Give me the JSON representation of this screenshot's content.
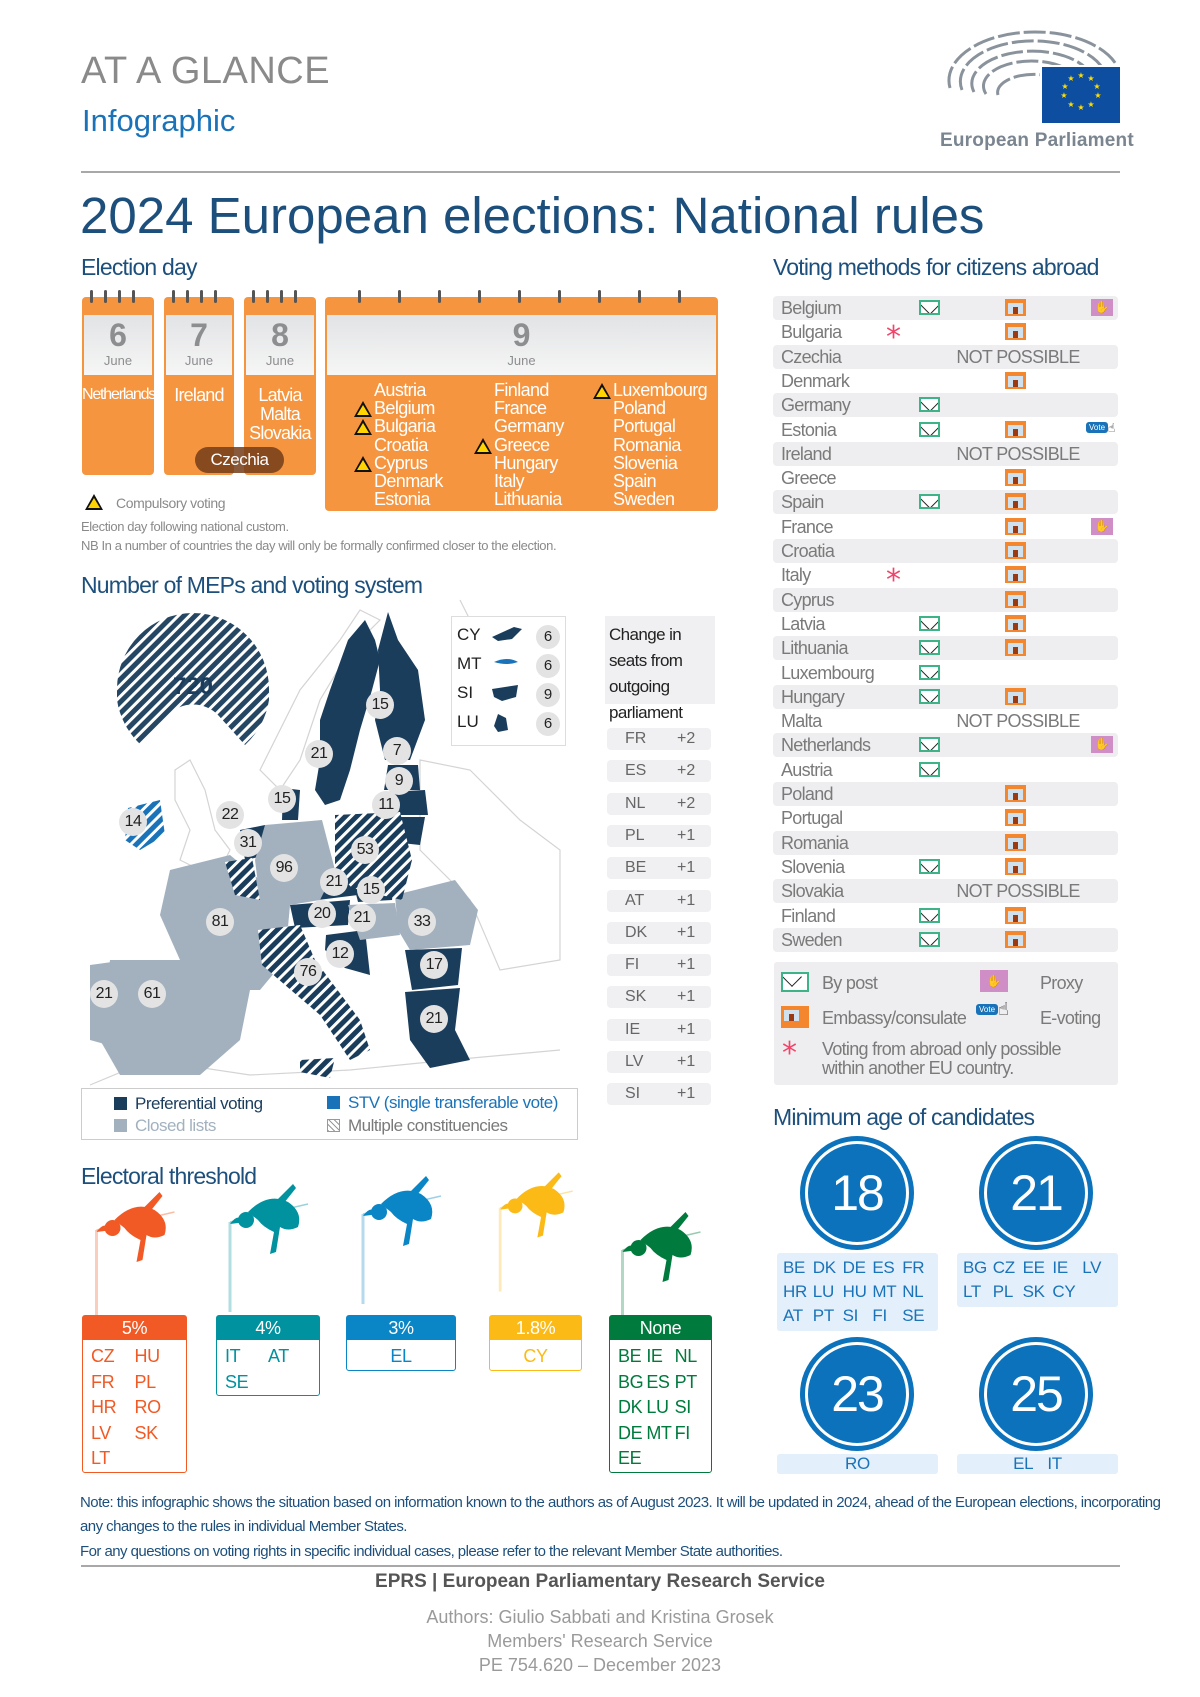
{
  "header": {
    "at_a_glance": "AT A GLANCE",
    "infographic": "Infographic",
    "logo_text": "European Parliament",
    "title": "2024 European elections: National rules"
  },
  "election_day": {
    "heading": "Election day",
    "calendars": [
      {
        "day": "6",
        "month": "June",
        "countries": [
          "Netherlands"
        ]
      },
      {
        "day": "7",
        "month": "June",
        "countries": [
          "Ireland"
        ]
      },
      {
        "day": "8",
        "month": "June",
        "countries": [
          "Latvia",
          "Malta",
          "Slovakia"
        ]
      },
      {
        "day": "9",
        "month": "June",
        "columns": [
          [
            {
              "name": "Austria",
              "compulsory": false
            },
            {
              "name": "Belgium",
              "compulsory": true
            },
            {
              "name": "Bulgaria",
              "compulsory": true
            },
            {
              "name": "Croatia",
              "compulsory": false
            },
            {
              "name": "Cyprus",
              "compulsory": true
            },
            {
              "name": "Denmark",
              "compulsory": false
            },
            {
              "name": "Estonia",
              "compulsory": false
            }
          ],
          [
            {
              "name": "Finland",
              "compulsory": false
            },
            {
              "name": "France",
              "compulsory": false
            },
            {
              "name": "Germany",
              "compulsory": false
            },
            {
              "name": "Greece",
              "compulsory": true
            },
            {
              "name": "Hungary",
              "compulsory": false
            },
            {
              "name": "Italy",
              "compulsory": false
            },
            {
              "name": "Lithuania",
              "compulsory": false
            }
          ],
          [
            {
              "name": "Luxembourg",
              "compulsory": true
            },
            {
              "name": "Poland",
              "compulsory": false
            },
            {
              "name": "Portugal",
              "compulsory": false
            },
            {
              "name": "Romania",
              "compulsory": false
            },
            {
              "name": "Slovenia",
              "compulsory": false
            },
            {
              "name": "Spain",
              "compulsory": false
            },
            {
              "name": "Sweden",
              "compulsory": false
            }
          ]
        ]
      }
    ],
    "shared_7_8": "Czechia",
    "legend_compulsory": "Compulsory voting",
    "notes": [
      "Election day following national custom.",
      "NB In a number of countries the day will only be formally confirmed closer to the election."
    ]
  },
  "meps": {
    "heading": "Number of MEPs and voting system",
    "total": "720",
    "seats": [
      {
        "code": "FI",
        "seats": "15"
      },
      {
        "code": "SE",
        "seats": "21"
      },
      {
        "code": "EE",
        "seats": "7"
      },
      {
        "code": "LV",
        "seats": "9"
      },
      {
        "code": "LT",
        "seats": "11"
      },
      {
        "code": "DK",
        "seats": "15"
      },
      {
        "code": "IE",
        "seats": "14"
      },
      {
        "code": "BE",
        "seats": "22"
      },
      {
        "code": "NL",
        "seats": "31"
      },
      {
        "code": "DE",
        "seats": "96"
      },
      {
        "code": "PL",
        "seats": "53"
      },
      {
        "code": "CZ",
        "seats": "21"
      },
      {
        "code": "SK",
        "seats": "15"
      },
      {
        "code": "AT",
        "seats": "20"
      },
      {
        "code": "HU",
        "seats": "21"
      },
      {
        "code": "RO",
        "seats": "33"
      },
      {
        "code": "FR",
        "seats": "81"
      },
      {
        "code": "HR",
        "seats": "12"
      },
      {
        "code": "IT",
        "seats": "76"
      },
      {
        "code": "BG",
        "seats": "17"
      },
      {
        "code": "EL",
        "seats": "21"
      },
      {
        "code": "PT",
        "seats": "21"
      },
      {
        "code": "ES",
        "seats": "61"
      }
    ],
    "inset": [
      {
        "code": "CY",
        "seats": "6"
      },
      {
        "code": "MT",
        "seats": "6"
      },
      {
        "code": "SI",
        "seats": "9"
      },
      {
        "code": "LU",
        "seats": "6"
      }
    ],
    "legend": {
      "preferential": "Preferential voting",
      "closed": "Closed lists",
      "stv": "STV (single transferable vote)",
      "multiple": "Multiple constituencies"
    },
    "colors": {
      "preferential": "#1b3d5c",
      "closed": "#a3b1bf",
      "stv": "#1a73b9"
    },
    "change_heading": "Change in seats from outgoing parliament",
    "changes": [
      {
        "code": "FR",
        "delta": "+2"
      },
      {
        "code": "ES",
        "delta": "+2"
      },
      {
        "code": "NL",
        "delta": "+2"
      },
      {
        "code": "PL",
        "delta": "+1"
      },
      {
        "code": "BE",
        "delta": "+1"
      },
      {
        "code": "AT",
        "delta": "+1"
      },
      {
        "code": "DK",
        "delta": "+1"
      },
      {
        "code": "FI",
        "delta": "+1"
      },
      {
        "code": "SK",
        "delta": "+1"
      },
      {
        "code": "IE",
        "delta": "+1"
      },
      {
        "code": "LV",
        "delta": "+1"
      },
      {
        "code": "SI",
        "delta": "+1"
      }
    ]
  },
  "threshold": {
    "heading": "Electoral threshold",
    "groups": [
      {
        "label": "5%",
        "color": "#f15a24",
        "cols": 2,
        "codes": [
          "CZ",
          "HU",
          "FR",
          "PL",
          "HR",
          "RO",
          "LV",
          "SK",
          "LT"
        ]
      },
      {
        "label": "4%",
        "color": "#00929f",
        "cols": 2,
        "codes": [
          "IT",
          "AT",
          "SE"
        ]
      },
      {
        "label": "3%",
        "color": "#0a86c6",
        "cols": 1,
        "codes": [
          "EL"
        ]
      },
      {
        "label": "1.8%",
        "color": "#fbba16",
        "cols": 1,
        "codes": [
          "CY"
        ]
      },
      {
        "label": "None",
        "color": "#007a3d",
        "cols": 3,
        "codes": [
          "BE",
          "IE",
          "NL",
          "BG",
          "ES",
          "PT",
          "DK",
          "LU",
          "SI",
          "DE",
          "MT",
          "FI",
          "EE"
        ]
      }
    ]
  },
  "voting_abroad": {
    "heading": "Voting methods for citizens abroad",
    "not_possible": "NOT POSSIBLE",
    "rows": [
      {
        "country": "Belgium",
        "methods": [
          "post",
          "embassy",
          "proxy"
        ]
      },
      {
        "country": "Bulgaria",
        "methods": [
          "eu_only",
          "embassy"
        ]
      },
      {
        "country": "Czechia",
        "methods": [
          "not_possible"
        ]
      },
      {
        "country": "Denmark",
        "methods": [
          "embassy"
        ]
      },
      {
        "country": "Germany",
        "methods": [
          "post"
        ]
      },
      {
        "country": "Estonia",
        "methods": [
          "post",
          "embassy",
          "evote"
        ]
      },
      {
        "country": "Ireland",
        "methods": [
          "not_possible"
        ]
      },
      {
        "country": "Greece",
        "methods": [
          "embassy"
        ]
      },
      {
        "country": "Spain",
        "methods": [
          "post",
          "embassy"
        ]
      },
      {
        "country": "France",
        "methods": [
          "embassy",
          "proxy"
        ]
      },
      {
        "country": "Croatia",
        "methods": [
          "embassy"
        ]
      },
      {
        "country": "Italy",
        "methods": [
          "eu_only",
          "embassy"
        ]
      },
      {
        "country": "Cyprus",
        "methods": [
          "embassy"
        ]
      },
      {
        "country": "Latvia",
        "methods": [
          "post",
          "embassy"
        ]
      },
      {
        "country": "Lithuania",
        "methods": [
          "post",
          "embassy"
        ]
      },
      {
        "country": "Luxembourg",
        "methods": [
          "post"
        ]
      },
      {
        "country": "Hungary",
        "methods": [
          "post",
          "embassy"
        ]
      },
      {
        "country": "Malta",
        "methods": [
          "not_possible"
        ]
      },
      {
        "country": "Netherlands",
        "methods": [
          "post",
          "proxy"
        ]
      },
      {
        "country": "Austria",
        "methods": [
          "post"
        ]
      },
      {
        "country": "Poland",
        "methods": [
          "embassy"
        ]
      },
      {
        "country": "Portugal",
        "methods": [
          "embassy"
        ]
      },
      {
        "country": "Romania",
        "methods": [
          "embassy"
        ]
      },
      {
        "country": "Slovenia",
        "methods": [
          "post",
          "embassy"
        ]
      },
      {
        "country": "Slovakia",
        "methods": [
          "not_possible"
        ]
      },
      {
        "country": "Finland",
        "methods": [
          "post",
          "embassy"
        ]
      },
      {
        "country": "Sweden",
        "methods": [
          "post",
          "embassy"
        ]
      }
    ],
    "legend": {
      "post": "By post",
      "proxy": "Proxy",
      "embassy": "Embassy/consulate",
      "evote": "E-voting",
      "evote_badge": "Vote",
      "eu_only": "Voting from abroad only possible within another EU country."
    }
  },
  "min_age": {
    "heading": "Minimum age of candidates",
    "groups": [
      {
        "age": "18",
        "codes": [
          "BE",
          "DK",
          "DE",
          "ES",
          "FR",
          "HR",
          "LU",
          "HU",
          "MT",
          "NL",
          "AT",
          "PT",
          "SI",
          "FI",
          "SE"
        ]
      },
      {
        "age": "21",
        "codes": [
          "BG",
          "CZ",
          "EE",
          "IE",
          "LV",
          "LT",
          "PL",
          "SK",
          "CY"
        ]
      },
      {
        "age": "23",
        "codes": [
          "RO"
        ]
      },
      {
        "age": "25",
        "codes": [
          "EL",
          "IT"
        ]
      }
    ]
  },
  "notes": [
    "Note: this infographic shows the situation based on information known to the authors as of August 2023. It will be updated in 2024, ahead of the European elections, incorporating",
    "any changes to the rules in individual Member States.",
    "For any questions on voting rights in specific individual cases, please refer to the relevant Member State authorities."
  ],
  "footer": {
    "eprs": "EPRS | European Parliamentary Research Service",
    "authors": "Authors: Giulio Sabbati and Kristina Grosek",
    "service": "Members' Research Service",
    "reference": "PE 754.620 – December 2023"
  }
}
